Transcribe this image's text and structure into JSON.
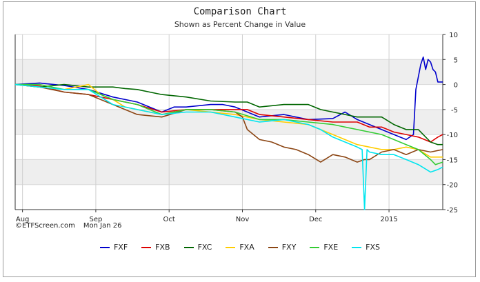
{
  "title": "Comparison Chart",
  "subtitle": "Shown as Percent Change in Value",
  "credit": {
    "source": "©ETFScreen.com",
    "date": "Mon Jan 26"
  },
  "chart_data": {
    "type": "line",
    "title": "Comparison Chart",
    "subtitle": "Shown as Percent Change in Value",
    "ylim": [
      -25,
      10
    ],
    "yticks": [
      10,
      5,
      0,
      -5,
      -10,
      -15,
      -20,
      -25
    ],
    "ytick_labels": [
      "10",
      "5",
      "0",
      "-5",
      "-10",
      "-15",
      "-20",
      "-25"
    ],
    "y_axis_side": "right",
    "xlim": [
      0,
      175
    ],
    "xticks": [
      {
        "x": 3,
        "label": "Aug"
      },
      {
        "x": 33,
        "label": "Sep"
      },
      {
        "x": 63,
        "label": "Oct"
      },
      {
        "x": 93,
        "label": "Nov"
      },
      {
        "x": 123,
        "label": "Dec"
      },
      {
        "x": 153,
        "label": "2015"
      }
    ],
    "grid": "horizontal alternating bands",
    "legend_position": "bottom",
    "series": [
      {
        "name": "FXF",
        "color": "#0000cc",
        "points": [
          [
            0,
            0
          ],
          [
            10,
            0.3
          ],
          [
            20,
            -0.2
          ],
          [
            30,
            -1
          ],
          [
            40,
            -2.5
          ],
          [
            50,
            -3.5
          ],
          [
            60,
            -5.5
          ],
          [
            65,
            -4.5
          ],
          [
            70,
            -4.5
          ],
          [
            80,
            -4
          ],
          [
            85,
            -4
          ],
          [
            90,
            -4.5
          ],
          [
            100,
            -6.5
          ],
          [
            110,
            -6
          ],
          [
            120,
            -7
          ],
          [
            130,
            -6.8
          ],
          [
            135,
            -5.5
          ],
          [
            140,
            -7
          ],
          [
            145,
            -8
          ],
          [
            150,
            -9
          ],
          [
            155,
            -10
          ],
          [
            160,
            -11
          ],
          [
            163,
            -10
          ],
          [
            164,
            -1
          ],
          [
            166,
            4
          ],
          [
            167,
            5.5
          ],
          [
            168,
            3
          ],
          [
            169,
            5
          ],
          [
            170,
            4.5
          ],
          [
            171,
            3
          ],
          [
            172,
            2.5
          ],
          [
            173,
            0.5
          ],
          [
            175,
            0.5
          ]
        ]
      },
      {
        "name": "FXB",
        "color": "#dd0000",
        "points": [
          [
            0,
            0
          ],
          [
            10,
            -0.3
          ],
          [
            20,
            -1.5
          ],
          [
            30,
            -2
          ],
          [
            40,
            -3
          ],
          [
            50,
            -4
          ],
          [
            60,
            -5.5
          ],
          [
            70,
            -5
          ],
          [
            80,
            -5
          ],
          [
            90,
            -5
          ],
          [
            95,
            -5
          ],
          [
            100,
            -6
          ],
          [
            110,
            -6.5
          ],
          [
            120,
            -7
          ],
          [
            130,
            -7.5
          ],
          [
            140,
            -7.5
          ],
          [
            145,
            -8.5
          ],
          [
            150,
            -8.5
          ],
          [
            155,
            -9.5
          ],
          [
            160,
            -10
          ],
          [
            165,
            -10.5
          ],
          [
            170,
            -11.5
          ],
          [
            173,
            -10.5
          ],
          [
            175,
            -10
          ]
        ]
      },
      {
        "name": "FXC",
        "color": "#006600",
        "points": [
          [
            0,
            0
          ],
          [
            10,
            -0.5
          ],
          [
            20,
            0
          ],
          [
            30,
            -0.5
          ],
          [
            40,
            -0.5
          ],
          [
            45,
            -0.8
          ],
          [
            50,
            -1
          ],
          [
            55,
            -1.5
          ],
          [
            60,
            -2
          ],
          [
            70,
            -2.5
          ],
          [
            80,
            -3.3
          ],
          [
            90,
            -3.5
          ],
          [
            95,
            -3.5
          ],
          [
            100,
            -4.5
          ],
          [
            110,
            -4
          ],
          [
            120,
            -4
          ],
          [
            125,
            -5
          ],
          [
            130,
            -5.5
          ],
          [
            140,
            -6.5
          ],
          [
            150,
            -6.5
          ],
          [
            155,
            -8
          ],
          [
            160,
            -9
          ],
          [
            165,
            -9
          ],
          [
            170,
            -11.5
          ],
          [
            173,
            -12
          ],
          [
            175,
            -12
          ]
        ]
      },
      {
        "name": "FXA",
        "color": "#ffcc00",
        "points": [
          [
            0,
            0
          ],
          [
            10,
            -0.5
          ],
          [
            20,
            -1
          ],
          [
            30,
            0
          ],
          [
            35,
            -2
          ],
          [
            40,
            -3
          ],
          [
            45,
            -4.5
          ],
          [
            50,
            -5
          ],
          [
            60,
            -6
          ],
          [
            70,
            -5
          ],
          [
            80,
            -5.5
          ],
          [
            90,
            -6
          ],
          [
            100,
            -7
          ],
          [
            110,
            -7.5
          ],
          [
            120,
            -8
          ],
          [
            130,
            -10
          ],
          [
            140,
            -12
          ],
          [
            145,
            -12.5
          ],
          [
            150,
            -13
          ],
          [
            155,
            -13
          ],
          [
            160,
            -12.5
          ],
          [
            165,
            -13
          ],
          [
            170,
            -14.5
          ],
          [
            172,
            -14.5
          ],
          [
            175,
            -14.5
          ]
        ]
      },
      {
        "name": "FXY",
        "color": "#8b4513",
        "points": [
          [
            0,
            0
          ],
          [
            10,
            -0.5
          ],
          [
            20,
            -1.5
          ],
          [
            30,
            -2
          ],
          [
            40,
            -4
          ],
          [
            50,
            -6
          ],
          [
            60,
            -6.5
          ],
          [
            70,
            -5
          ],
          [
            80,
            -5
          ],
          [
            90,
            -5.5
          ],
          [
            93,
            -6.5
          ],
          [
            95,
            -9
          ],
          [
            100,
            -11
          ],
          [
            105,
            -11.5
          ],
          [
            110,
            -12.5
          ],
          [
            115,
            -13
          ],
          [
            120,
            -14
          ],
          [
            125,
            -15.5
          ],
          [
            130,
            -14
          ],
          [
            135,
            -14.5
          ],
          [
            140,
            -15.5
          ],
          [
            143,
            -15
          ],
          [
            145,
            -15
          ],
          [
            150,
            -13.5
          ],
          [
            155,
            -13
          ],
          [
            160,
            -14
          ],
          [
            165,
            -13
          ],
          [
            170,
            -13.5
          ],
          [
            175,
            -13
          ]
        ]
      },
      {
        "name": "FXE",
        "color": "#33cc33",
        "points": [
          [
            0,
            0
          ],
          [
            10,
            0
          ],
          [
            20,
            -1
          ],
          [
            30,
            -1
          ],
          [
            40,
            -3
          ],
          [
            50,
            -4
          ],
          [
            60,
            -6
          ],
          [
            70,
            -5
          ],
          [
            80,
            -5
          ],
          [
            90,
            -5.5
          ],
          [
            100,
            -7
          ],
          [
            110,
            -7
          ],
          [
            120,
            -7.5
          ],
          [
            130,
            -8
          ],
          [
            140,
            -9
          ],
          [
            150,
            -10
          ],
          [
            155,
            -11
          ],
          [
            160,
            -12
          ],
          [
            165,
            -13
          ],
          [
            170,
            -15
          ],
          [
            172,
            -16
          ],
          [
            175,
            -15.5
          ]
        ]
      },
      {
        "name": "FXS",
        "color": "#00e5ee",
        "points": [
          [
            0,
            0
          ],
          [
            10,
            -0.5
          ],
          [
            20,
            -1
          ],
          [
            30,
            -1
          ],
          [
            40,
            -4
          ],
          [
            50,
            -5
          ],
          [
            60,
            -6
          ],
          [
            70,
            -5.5
          ],
          [
            80,
            -5.5
          ],
          [
            90,
            -6.5
          ],
          [
            100,
            -7.5
          ],
          [
            110,
            -7
          ],
          [
            120,
            -8
          ],
          [
            125,
            -9
          ],
          [
            130,
            -10.5
          ],
          [
            135,
            -11.5
          ],
          [
            140,
            -12.5
          ],
          [
            142,
            -13
          ],
          [
            143,
            -25
          ],
          [
            144,
            -13
          ],
          [
            145,
            -13.5
          ],
          [
            150,
            -14
          ],
          [
            155,
            -14
          ],
          [
            160,
            -15
          ],
          [
            165,
            -16
          ],
          [
            170,
            -17.5
          ],
          [
            173,
            -17
          ],
          [
            175,
            -16.5
          ]
        ]
      }
    ]
  },
  "legend": [
    {
      "name": "FXF",
      "color": "#0000cc"
    },
    {
      "name": "FXB",
      "color": "#dd0000"
    },
    {
      "name": "FXC",
      "color": "#006600"
    },
    {
      "name": "FXA",
      "color": "#ffcc00"
    },
    {
      "name": "FXY",
      "color": "#8b4513"
    },
    {
      "name": "FXE",
      "color": "#33cc33"
    },
    {
      "name": "FXS",
      "color": "#00e5ee"
    }
  ]
}
